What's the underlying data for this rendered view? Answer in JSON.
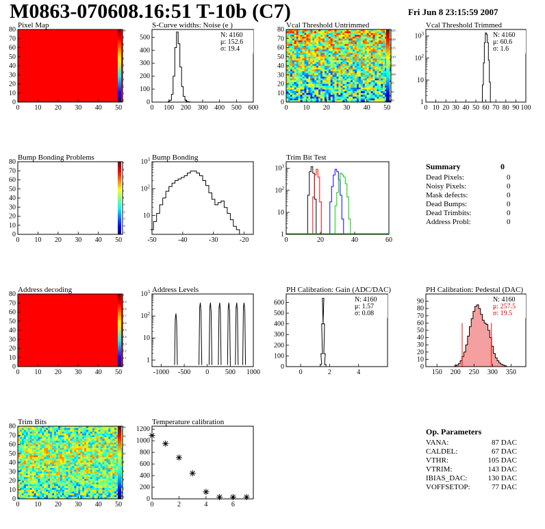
{
  "header": {
    "title": "M0863-070608.16:51 T-10b (C7)",
    "date": "Fri Jun  8 23:15:59 2007"
  },
  "chart_data": [
    {
      "id": "pixel-map",
      "type": "heatmap",
      "title": "Pixel Map",
      "xlim": [
        0,
        52
      ],
      "ylim": [
        0,
        80
      ],
      "xticks": [
        0,
        10,
        20,
        30,
        40,
        50
      ],
      "yticks": [
        0,
        10,
        20,
        30,
        40,
        50,
        60,
        70,
        80
      ],
      "fill": "#ff0000",
      "zticks": [
        "10",
        "9",
        "8",
        "7",
        "6",
        "5",
        "4",
        "3",
        "2",
        "1",
        "0"
      ]
    },
    {
      "id": "scurve-noise",
      "type": "line",
      "title": "S-Curve widths: Noise (e )",
      "xlim": [
        0,
        600
      ],
      "ylim": [
        0,
        560
      ],
      "xticks": [
        0,
        100,
        200,
        300,
        400,
        500,
        600
      ],
      "yticks": [
        0,
        100,
        200,
        300,
        400,
        500
      ],
      "stats": [
        "N: 4160",
        "μ: 152.6",
        "σ: 19.4"
      ],
      "x": [
        90,
        100,
        110,
        120,
        130,
        140,
        150,
        160,
        170,
        180,
        190,
        200,
        210,
        220,
        230
      ],
      "y": [
        0,
        3,
        15,
        60,
        200,
        420,
        540,
        450,
        270,
        120,
        45,
        15,
        5,
        2,
        0
      ]
    },
    {
      "id": "vcal-untrimmed",
      "type": "heatmap",
      "title": "Vcal Threshold Untrimmed",
      "xlim": [
        0,
        52
      ],
      "ylim": [
        0,
        80
      ],
      "xticks": [
        0,
        10,
        20,
        30,
        40,
        50
      ],
      "yticks": [
        0,
        10,
        20,
        30,
        40,
        50,
        60,
        70,
        80
      ],
      "zticks": [
        "125",
        "120",
        "115",
        "110",
        "105",
        "100",
        "95",
        "90",
        "85"
      ]
    },
    {
      "id": "vcal-trimmed",
      "type": "line",
      "title": "Vcal Threshold Trimmed",
      "xlim": [
        0,
        100
      ],
      "ylim": [
        1,
        2000
      ],
      "yscale": "log",
      "xticks": [
        0,
        10,
        20,
        30,
        40,
        50,
        60,
        70,
        80,
        90,
        100
      ],
      "stats": [
        "N: 4160",
        "μ: 60.6",
        "σ:  1.6"
      ],
      "x": [
        56,
        57,
        58,
        59,
        60,
        61,
        62,
        63,
        64,
        65
      ],
      "y": [
        1,
        6,
        60,
        500,
        1400,
        1200,
        500,
        80,
        8,
        1
      ]
    },
    {
      "id": "bump-bonding-problems",
      "type": "heatmap",
      "title": "Bump Bonding Problems",
      "xlim": [
        0,
        52
      ],
      "ylim": [
        0,
        80
      ],
      "xticks": [
        0,
        10,
        20,
        30,
        40,
        50
      ],
      "yticks": [
        0,
        10,
        20,
        30,
        40,
        50,
        60,
        70,
        80
      ],
      "fill": "#ffffff",
      "zticks": [
        "5",
        "4",
        "3",
        "2",
        "1",
        "0",
        "-1",
        "-2",
        "-3",
        "-4",
        "-5"
      ]
    },
    {
      "id": "bump-bonding",
      "type": "line",
      "title": "Bump Bonding",
      "xlim": [
        -50,
        -17
      ],
      "ylim": [
        2,
        1000
      ],
      "yscale": "log",
      "xticks": [
        -50,
        -40,
        -30,
        -20
      ],
      "x": [
        -50,
        -49,
        -48,
        -47,
        -46,
        -45,
        -44,
        -43,
        -42,
        -41,
        -40,
        -39,
        -38,
        -37,
        -36,
        -35,
        -34,
        -33,
        -32,
        -31,
        -30,
        -29,
        -28,
        -27,
        -26,
        -25,
        -24,
        -23,
        -22,
        -21,
        -20
      ],
      "y": [
        3,
        6,
        12,
        25,
        45,
        80,
        120,
        160,
        200,
        230,
        260,
        300,
        380,
        450,
        450,
        380,
        300,
        200,
        130,
        70,
        40,
        25,
        30,
        35,
        20,
        12,
        7,
        4,
        3,
        2,
        2
      ]
    },
    {
      "id": "trim-bit-test",
      "type": "line",
      "title": "Trim Bit Test",
      "xlim": [
        0,
        60
      ],
      "ylim": [
        1,
        2000
      ],
      "yscale": "log",
      "xticks": [
        0,
        20,
        40,
        60
      ],
      "series": [
        {
          "color": "#000000",
          "x": [
            12,
            13,
            14,
            15,
            16,
            17,
            18
          ],
          "y": [
            1,
            60,
            700,
            1200,
            600,
            40,
            1
          ]
        },
        {
          "color": "#ff0000",
          "x": [
            15,
            16,
            17,
            18,
            19,
            20,
            21
          ],
          "y": [
            1,
            50,
            500,
            900,
            400,
            30,
            1
          ]
        },
        {
          "color": "#0000ff",
          "x": [
            25,
            26,
            27,
            28,
            29,
            30,
            31,
            32,
            33,
            34
          ],
          "y": [
            1,
            30,
            150,
            500,
            900,
            700,
            300,
            60,
            5,
            1
          ]
        },
        {
          "color": "#00cc00",
          "x": [
            28,
            29,
            30,
            31,
            32,
            33,
            34,
            35,
            36,
            37,
            38
          ],
          "y": [
            1,
            20,
            80,
            300,
            600,
            500,
            400,
            200,
            50,
            5,
            1
          ]
        }
      ]
    },
    {
      "id": "address-decoding",
      "type": "heatmap",
      "title": "Address decoding",
      "xlim": [
        0,
        52
      ],
      "ylim": [
        0,
        80
      ],
      "xticks": [
        0,
        10,
        20,
        30,
        40,
        50
      ],
      "yticks": [
        0,
        10,
        20,
        30,
        40,
        50,
        60,
        70,
        80
      ],
      "fill": "#ff0000",
      "zticks": [
        "1",
        "0.9",
        "0.8",
        "0.7",
        "0.6",
        "0.5",
        "0.4",
        "0.3",
        "0.2",
        "0.1",
        "0"
      ]
    },
    {
      "id": "address-levels",
      "type": "line",
      "title": "Address Levels",
      "xlim": [
        -1200,
        1000
      ],
      "ylim": [
        0.5,
        1000
      ],
      "yscale": "log",
      "xticks": [
        -1000,
        -500,
        0,
        500,
        1000
      ],
      "peaks": [
        -680,
        -150,
        70,
        270,
        470,
        640,
        800
      ],
      "peak_y": [
        130,
        400,
        400,
        400,
        400,
        400,
        400
      ]
    },
    {
      "id": "ph-gain",
      "type": "line",
      "title": "PH Calibration: Gain (ADC/DAC)",
      "xlim": [
        -1,
        6
      ],
      "ylim": [
        0,
        680
      ],
      "xticks": [
        0,
        2,
        4
      ],
      "yticks": [
        0,
        100,
        200,
        300,
        400,
        500,
        600
      ],
      "stats": [
        "N: 4160",
        "μ: 1.57",
        "σ: 0.08"
      ],
      "x": [
        1.3,
        1.4,
        1.45,
        1.5,
        1.55,
        1.6,
        1.65,
        1.7,
        1.8
      ],
      "y": [
        0,
        20,
        120,
        400,
        640,
        400,
        120,
        20,
        0
      ]
    },
    {
      "id": "ph-pedestal",
      "type": "line",
      "title": "PH Calibration: Pedestal (DAC)",
      "xlim": [
        120,
        390
      ],
      "ylim": [
        0,
        100
      ],
      "xticks": [
        150,
        200,
        250,
        300,
        350
      ],
      "yticks": [
        0,
        10,
        20,
        30,
        40,
        50,
        60,
        70,
        80,
        90
      ],
      "stats": [
        "N: 4160",
        "μ: 257.5",
        "σ: 19.5"
      ],
      "x": [
        195,
        200,
        205,
        210,
        215,
        220,
        225,
        230,
        235,
        240,
        245,
        250,
        255,
        260,
        265,
        270,
        275,
        280,
        285,
        290,
        295,
        300,
        305,
        310,
        315,
        320,
        325,
        330,
        335,
        340
      ],
      "y": [
        0,
        1,
        2,
        4,
        8,
        14,
        20,
        30,
        42,
        55,
        66,
        76,
        83,
        85,
        80,
        72,
        64,
        60,
        58,
        50,
        40,
        28,
        18,
        12,
        8,
        5,
        3,
        2,
        1,
        0
      ],
      "cuts": [
        218,
        297
      ]
    },
    {
      "id": "trim-bits",
      "type": "heatmap",
      "title": "Trim Bits",
      "xlim": [
        0,
        52
      ],
      "ylim": [
        0,
        80
      ],
      "xticks": [
        0,
        10,
        20,
        30,
        40,
        50
      ],
      "yticks": [
        0,
        10,
        20,
        30,
        40,
        50,
        60,
        70,
        80
      ],
      "zticks": [
        "16",
        "14",
        "12",
        "10",
        "8",
        "6",
        "4",
        "2",
        "0"
      ]
    },
    {
      "id": "temperature-calibration",
      "type": "scatter",
      "title": "Temperature calibration",
      "xlim": [
        0,
        7.5
      ],
      "ylim": [
        0,
        1250
      ],
      "xticks": [
        0,
        2,
        4,
        6
      ],
      "yticks": [
        0,
        200,
        400,
        600,
        800,
        1000,
        1200
      ],
      "x": [
        0,
        1,
        2,
        3,
        4,
        5,
        6,
        7
      ],
      "y": [
        1090,
        950,
        710,
        440,
        120,
        30,
        30,
        30
      ]
    }
  ],
  "summary": {
    "title": "Summary",
    "total": "0",
    "rows": [
      {
        "label": "Dead Pixels:",
        "value": "0"
      },
      {
        "label": "Noisy Pixels:",
        "value": "0"
      },
      {
        "label": "Mask defects:",
        "value": "0"
      },
      {
        "label": "Dead Bumps:",
        "value": "0"
      },
      {
        "label": "Dead Trimbits:",
        "value": "0"
      },
      {
        "label": "Address Probl:",
        "value": "0"
      }
    ]
  },
  "op_parameters": {
    "title": "Op. Parameters",
    "rows": [
      {
        "label": "VANA:",
        "value": "87 DAC"
      },
      {
        "label": "CALDEL:",
        "value": "67 DAC"
      },
      {
        "label": "VTHR:",
        "value": "105 DAC"
      },
      {
        "label": "VTRIM:",
        "value": "143 DAC"
      },
      {
        "label": "IBIAS_DAC:",
        "value": "130 DAC"
      },
      {
        "label": "VOFFSETOP:",
        "value": "77 DAC"
      }
    ]
  }
}
